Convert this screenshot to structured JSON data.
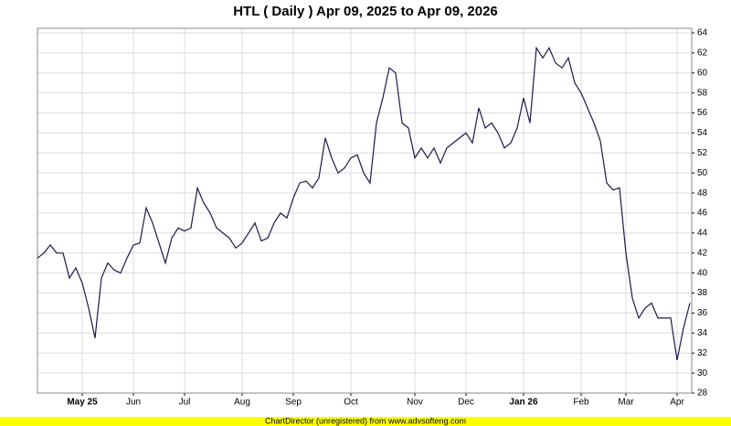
{
  "chart_data": {
    "type": "line",
    "title": "HTL ( Daily ) Apr 09, 2025 to Apr 09, 2026",
    "footer": "ChartDirector (unregistered) from www.advsofteng.com",
    "color": "#1a1a4e",
    "grid": true,
    "ylim": [
      28,
      64
    ],
    "yticks": [
      28,
      30,
      32,
      34,
      36,
      38,
      40,
      42,
      44,
      46,
      48,
      50,
      52,
      54,
      56,
      58,
      60,
      62,
      64
    ],
    "categories": [
      null,
      null,
      null,
      null,
      null,
      null,
      null,
      "May 25",
      null,
      null,
      null,
      null,
      null,
      null,
      null,
      "Jun",
      null,
      null,
      null,
      null,
      null,
      null,
      null,
      "Jul",
      null,
      null,
      null,
      null,
      null,
      null,
      null,
      null,
      "Aug",
      null,
      null,
      null,
      null,
      null,
      null,
      null,
      "Sep",
      null,
      null,
      null,
      null,
      null,
      null,
      null,
      null,
      "Oct",
      null,
      null,
      null,
      null,
      null,
      null,
      null,
      null,
      null,
      "Nov",
      null,
      null,
      null,
      null,
      null,
      null,
      null,
      "Dec",
      null,
      null,
      null,
      null,
      null,
      null,
      null,
      null,
      "Jan 26",
      null,
      null,
      null,
      null,
      null,
      null,
      null,
      null,
      "Feb",
      null,
      null,
      null,
      null,
      null,
      null,
      "Mar",
      null,
      null,
      null,
      null,
      null,
      null,
      null,
      "Apr",
      null,
      null
    ],
    "values": [
      41.5,
      42,
      42.8,
      42,
      42,
      39.5,
      40.5,
      39,
      36.5,
      33.5,
      39.5,
      41,
      40.3,
      40,
      41.5,
      42.8,
      43,
      46.5,
      45,
      43,
      41,
      43.5,
      44.5,
      44.2,
      44.5,
      48.5,
      47,
      46,
      44.5,
      44,
      43.5,
      42.5,
      43,
      44,
      45,
      43.2,
      43.5,
      45,
      46,
      45.5,
      47.5,
      49,
      49.2,
      48.5,
      49.5,
      53.5,
      51.5,
      50,
      50.5,
      51.5,
      51.8,
      50,
      49,
      55,
      57.5,
      60.5,
      60,
      55,
      54.5,
      51.5,
      52.5,
      51.5,
      52.5,
      51,
      52.5,
      53,
      53.5,
      54,
      53,
      56.5,
      54.5,
      55,
      54,
      52.5,
      53,
      54.5,
      57.5,
      55,
      62.5,
      61.5,
      62.5,
      61,
      60.5,
      61.5,
      59,
      58,
      56.5,
      55,
      53.2,
      49,
      48.3,
      48.5,
      42,
      37.5,
      35.5,
      36.5,
      37,
      35.5,
      35.5,
      35.5,
      31.3,
      34.5,
      37
    ]
  }
}
